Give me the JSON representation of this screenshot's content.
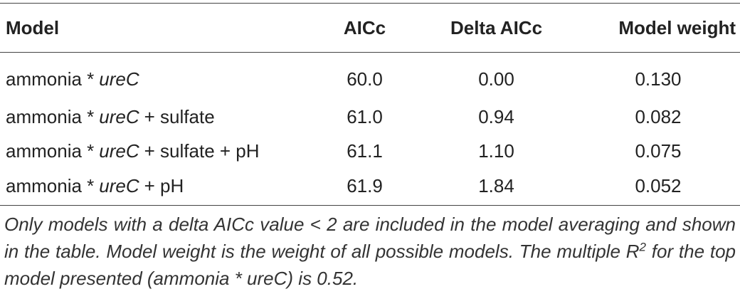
{
  "table": {
    "header": [
      "Model",
      "AICc",
      "Delta AICc",
      "Model weight"
    ],
    "rows": [
      {
        "model": {
          "pre": "ammonia *",
          "gene": "ureC"
        },
        "aicc": "60.0",
        "delta": "0.00",
        "weight": "0.130"
      },
      {
        "model": {
          "pre": "ammonia *",
          "gene": "ureC",
          "post": "+ sulfate"
        },
        "aicc": "61.0",
        "delta": "0.94",
        "weight": "0.082"
      },
      {
        "model": {
          "pre": "ammonia *",
          "gene": "ureC",
          "post": "+ sulfate + pH"
        },
        "aicc": "61.1",
        "delta": "1.10",
        "weight": "0.075"
      },
      {
        "model": {
          "pre": "ammonia *",
          "gene": "ureC",
          "post": "+ pH"
        },
        "aicc": "61.9",
        "delta": "1.84",
        "weight": "0.052"
      }
    ]
  },
  "note": {
    "text1": "Only models with a delta AICc value < 2 are included in the model averaging and shown in the table. Model weight is the weight of all possible models. The multiple R",
    "sup": "2",
    "text2": " for the top model presented (ammonia * ureC) is 0.52."
  }
}
